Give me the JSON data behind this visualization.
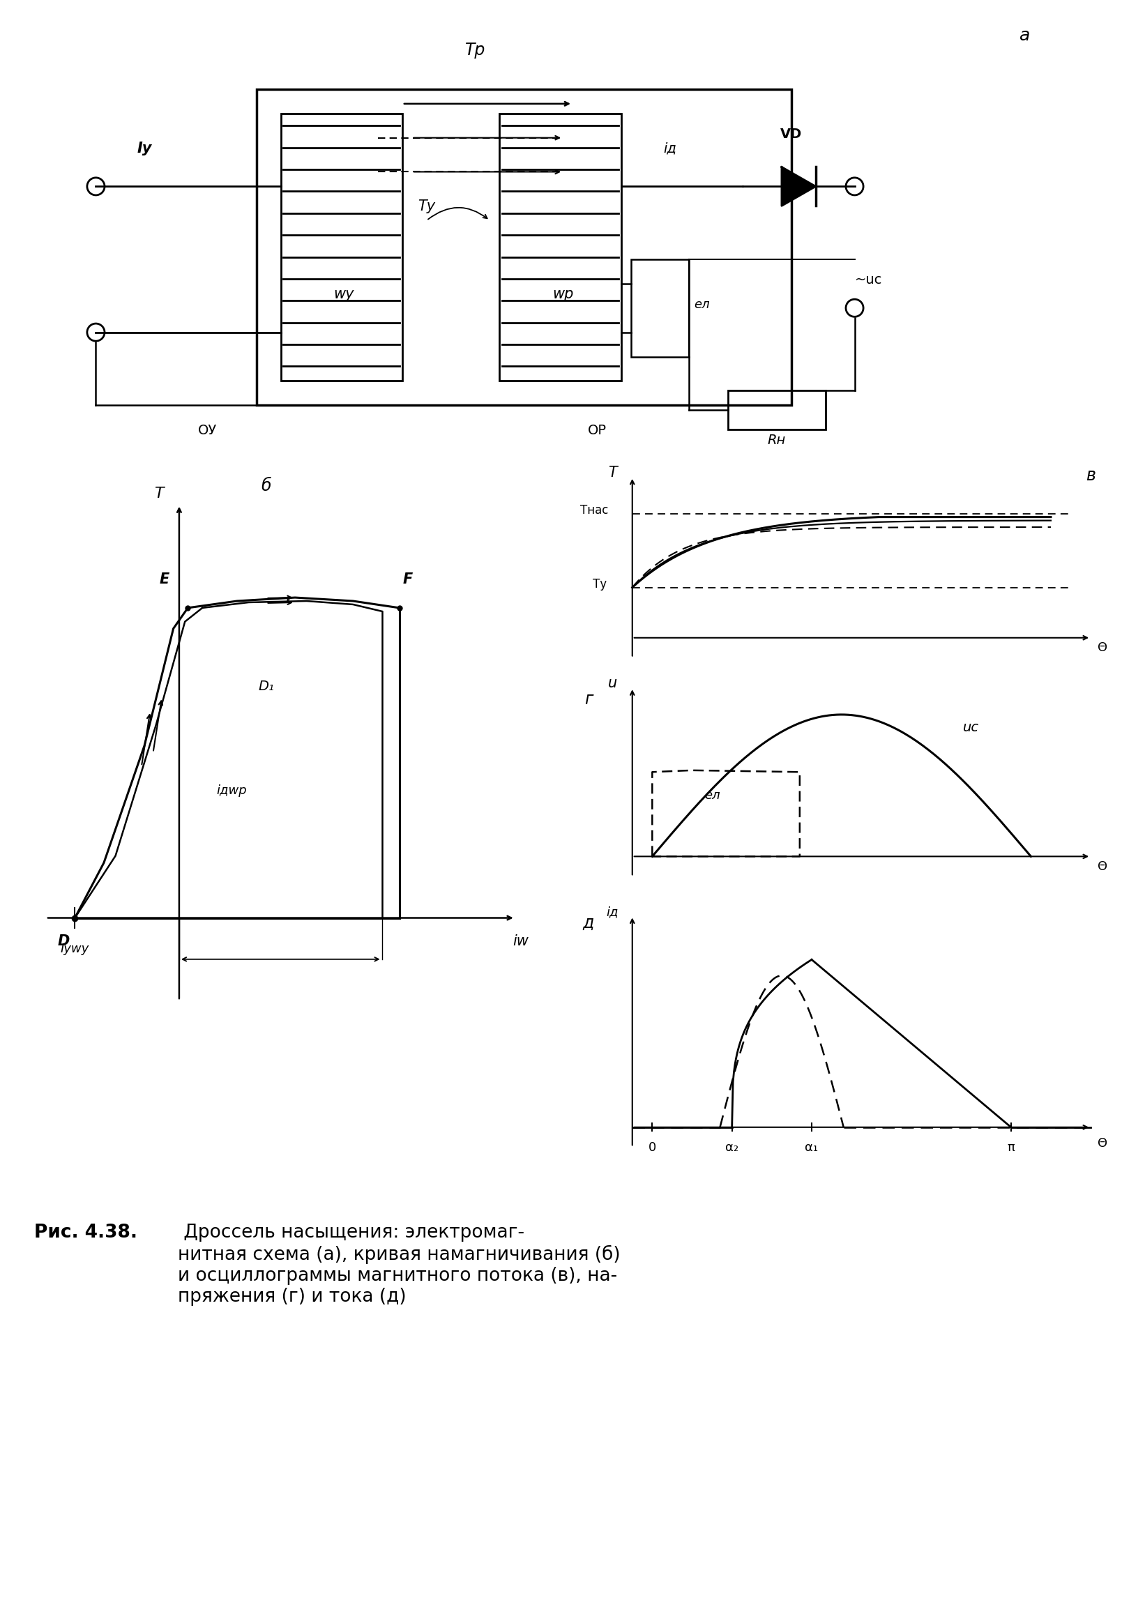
{
  "fig_width": 16.42,
  "fig_height": 23.25,
  "bg_color": "#ffffff",
  "caption_bold": "Рис. 4.38.",
  "caption_rest": " Дроссель насыщения: электромаг-\nнитная схема (а), кривая намагничивания (б)\nи осциллограммы магнитного потока (в), на-\nпряжения (г) и тока (д)",
  "label_a": "а",
  "label_b": "б",
  "label_v": "в",
  "label_g": "г",
  "label_d": "д",
  "label_Phi_r": "Τр",
  "label_Phi_u_top": "Τу",
  "label_Phi_nas": "Τнас",
  "label_Phi_u2": "Τу",
  "label_I_u": "Iу",
  "label_w_u": "wу",
  "label_w_p": "wр",
  "label_i_d": "iд",
  "label_VD": "VD",
  "label_e_L": "eл",
  "label_u_c_circ": "~uс",
  "label_R_n": "Rн",
  "label_OU": "ОУ",
  "label_OR": "ОР",
  "label_Phi_ax": "Τ",
  "label_iw": "iw",
  "label_IyWy": "Iуwу",
  "label_E": "E",
  "label_F": "F",
  "label_D": "D",
  "label_D1": "D₁",
  "label_idwp": "iдwр",
  "label_Theta": "Θ",
  "label_u_ax": "u",
  "label_uc_curve": "uс",
  "label_eL_curve": "eл",
  "label_id_ax": "iд",
  "label_alpha2": "α₂",
  "label_alpha1": "α₁",
  "label_pi": "π",
  "label_zero": "0"
}
